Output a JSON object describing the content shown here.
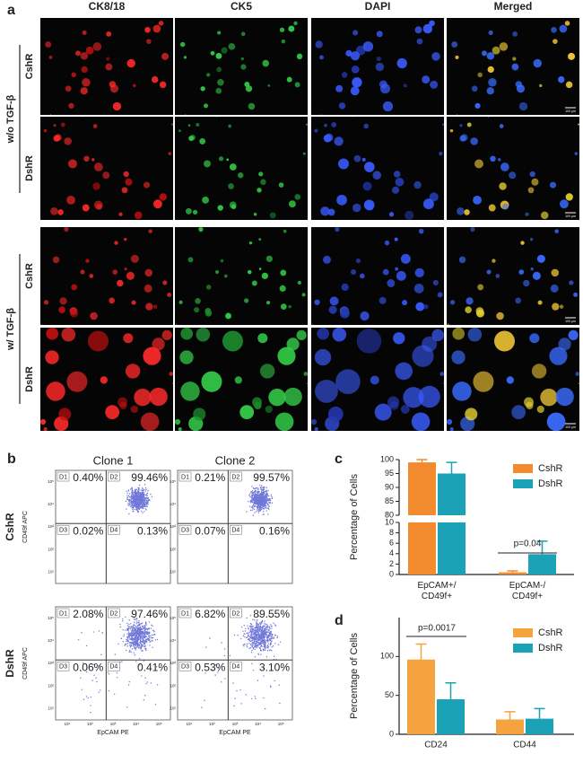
{
  "panel_a": {
    "label": "a",
    "columns": [
      "CK8/18",
      "CK5",
      "DAPI",
      "Merged"
    ],
    "groups": [
      {
        "label": "w/o TGF-β",
        "rows": [
          "CshR",
          "DshR"
        ]
      },
      {
        "label": "w/ TGF-β",
        "rows": [
          "CshR",
          "DshR"
        ]
      }
    ],
    "scale_bar": "100 μm"
  },
  "panel_b": {
    "label": "b",
    "columns": [
      "Clone 1",
      "Clone 2"
    ],
    "rows": [
      "CshR",
      "DshR"
    ],
    "y_axis_label": "CD49f APC",
    "x_axis_label": "EpCAM PE",
    "quadrant_labels": [
      "D1",
      "D2",
      "D3",
      "D4"
    ],
    "tick_labels": [
      "10¹",
      "10²",
      "10³",
      "10⁴",
      "10⁵"
    ],
    "plots": [
      [
        [
          "0.40%",
          "99.46%",
          "0.02%",
          "0.13%"
        ],
        [
          "0.21%",
          "99.57%",
          "0.07%",
          "0.16%"
        ]
      ],
      [
        [
          "2.08%",
          "97.46%",
          "0.06%",
          "0.41%"
        ],
        [
          "6.82%",
          "89.55%",
          "0.53%",
          "3.10%"
        ]
      ]
    ]
  },
  "chart_data": [
    {
      "type": "bar",
      "panel_label": "c",
      "y_axis_label": "Percentage of Cells",
      "categories": [
        "EpCAM+/ CD49f+",
        "EpCAM-/ CD49f+"
      ],
      "series": [
        {
          "name": "CshR",
          "color": "#f28a2e",
          "values": [
            99,
            0.4
          ],
          "errors": [
            1,
            0.3
          ]
        },
        {
          "name": "DshR",
          "color": "#1ba2b6",
          "values": [
            95,
            3.9
          ],
          "errors": [
            4,
            2.5
          ]
        }
      ],
      "ylim": [
        0,
        100
      ],
      "axis_break": [
        10,
        80
      ],
      "yticks": [
        0,
        2,
        4,
        6,
        8,
        10,
        80,
        85,
        90,
        95,
        100
      ],
      "annotations": [
        "p=0.04"
      ],
      "legend": "upper right"
    },
    {
      "type": "bar",
      "panel_label": "d",
      "y_axis_label": "Percentage of Cells",
      "categories": [
        "CD24",
        "CD44"
      ],
      "series": [
        {
          "name": "CshR",
          "color": "#f5a33e",
          "values": [
            96,
            19
          ],
          "errors": [
            20,
            10
          ]
        },
        {
          "name": "DshR",
          "color": "#1ba2b6",
          "values": [
            45,
            20
          ],
          "errors": [
            21,
            13
          ]
        }
      ],
      "ylim": [
        0,
        150
      ],
      "yticks": [
        0,
        50,
        100
      ],
      "annotations": [
        "p=0.0017"
      ],
      "legend": "upper right"
    }
  ]
}
